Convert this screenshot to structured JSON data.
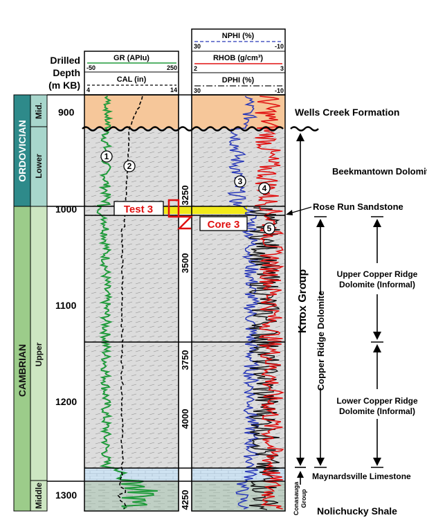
{
  "depth_header": {
    "line1": "Drilled",
    "line2": "Depth",
    "line3": "(m KB)"
  },
  "depth_ticks": [
    "900",
    "1000",
    "1100",
    "1200",
    "1300"
  ],
  "ft_ticks": [
    "3250",
    "3500",
    "3750",
    "4000",
    "4250"
  ],
  "chrono": {
    "ordovician": "ORDOVICIAN",
    "cambrian": "CAMBRIAN",
    "mid": "Mid.",
    "lower": "Lower",
    "upper": "Upper",
    "middle": "Middle"
  },
  "track1": {
    "gr_label": "GR (APIu)",
    "gr_min": "-50",
    "gr_max": "250",
    "cal_label": "CAL (in)",
    "cal_min": "4",
    "cal_max": "14"
  },
  "track2": {
    "nphi_label": "NPHI (%)",
    "nphi_min": "30",
    "nphi_max": "-10",
    "rhob_label": "RHOB (g/cm³)",
    "rhob_min": "2",
    "rhob_max": "3",
    "dphi_label": "DPHI (%)",
    "dphi_min": "30",
    "dphi_max": "-10"
  },
  "markers": [
    "1",
    "2",
    "3",
    "4",
    "5"
  ],
  "callouts": {
    "test": "Test 3",
    "core": "Core 3"
  },
  "formations": {
    "wells_creek": "Wells Creek Formation",
    "beekmantown": "Beekmantown Dolomite",
    "rose_run": "Rose Run Sandstone",
    "upper_copper_1": "Upper Copper Ridge",
    "upper_copper_2": "Dolomite (Informal)",
    "lower_copper_1": "Lower Copper Ridge",
    "lower_copper_2": "Dolomite (Informal)",
    "maynardsville": "Maynardsville Limestone",
    "nolichucky": "Nolichucky Shale"
  },
  "groups": {
    "knox": "Knox Group",
    "copper_ridge": "Copper Ridge Dolomite",
    "conasauga_1": "Conasauga",
    "conasauga_2": "Group"
  },
  "colors": {
    "gr": "#1f9a3a",
    "rhob": "#e01010",
    "nphi": "#2838b8",
    "dphi": "#111111",
    "wells_creek_fill": "#f6c79a",
    "dolomite_fill": "#dcdcdc",
    "sandstone_fill": "#f2ea1a",
    "limestone_fill": "#cfe3f2",
    "shale_fill": "#bfcfc4",
    "ordovician": "#2e8a8a",
    "cambrian": "#9ccc8a",
    "epoch_light": "#cde6c2",
    "mid_ordovician": "#a8d6cc"
  }
}
